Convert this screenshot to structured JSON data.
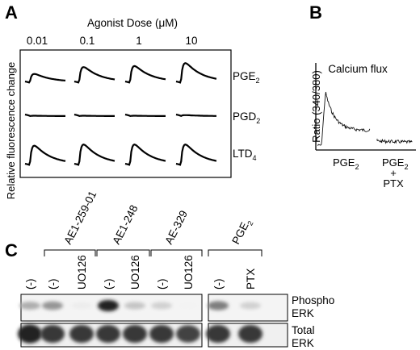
{
  "panel_a": {
    "letter": "A",
    "title": "Agonist Dose (μM)",
    "ylabel": "Relative fluorescence change",
    "doses": [
      "0.01",
      "0.1",
      "1",
      "10"
    ],
    "rows": [
      {
        "base": "PGE",
        "sub": "2",
        "response": [
          0.4,
          0.75,
          0.8,
          0.95
        ]
      },
      {
        "base": "PGD",
        "sub": "2",
        "response": [
          0.02,
          0.02,
          0.02,
          0.05
        ]
      },
      {
        "base": "LTD",
        "sub": "4",
        "response": [
          0.8,
          0.85,
          0.85,
          0.85
        ]
      }
    ]
  },
  "panel_b": {
    "letter": "B",
    "title": "Calcium flux",
    "ylabel": "Ratio (340/380)",
    "conditions": [
      {
        "base": "PGE",
        "sub": "2",
        "suffix": ""
      },
      {
        "base": "PGE",
        "sub": "2",
        "suffix": "+",
        "extra": "PTX"
      }
    ]
  },
  "panel_c": {
    "letter": "C",
    "groups": [
      "AE1-259-01",
      "AE1-248",
      "AE-329",
      "PGE2"
    ],
    "group_sub_last": true,
    "lanes": [
      "(-)",
      "(-)",
      "UO126",
      "(-)",
      "UO126",
      "(-)",
      "UO126",
      "(-)",
      "PTX"
    ],
    "rows": [
      {
        "line1": "Phospho",
        "line2": "ERK",
        "intensity": [
          0.35,
          0.45,
          0.08,
          0.95,
          0.25,
          0.2,
          0.05,
          0.55,
          0.2
        ]
      },
      {
        "line1": "Total",
        "line2": "ERK",
        "intensity": [
          0.95,
          0.85,
          0.85,
          0.85,
          0.85,
          0.85,
          0.8,
          0.85,
          0.85
        ]
      }
    ]
  }
}
